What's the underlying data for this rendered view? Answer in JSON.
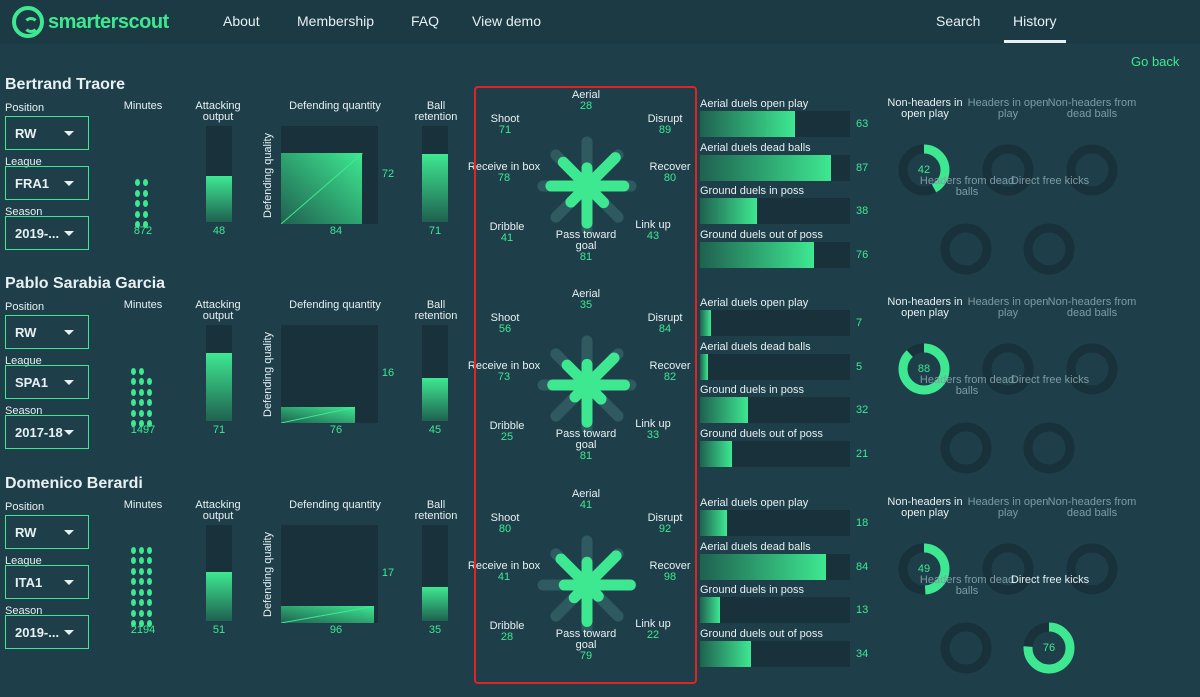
{
  "nav": {
    "logo_text": "smarterscout",
    "links": [
      "About",
      "Membership",
      "FAQ",
      "View demo"
    ],
    "right_links": [
      "Search",
      "History"
    ],
    "go_back": "Go back"
  },
  "labels": {
    "position": "Position",
    "league": "League",
    "season": "Season",
    "minutes": "Minutes",
    "attacking_output": "Attacking output",
    "defending_quantity": "Defending quantity",
    "defending_quality": "Defending quality",
    "ball_retention": "Ball retention",
    "aerial": "Aerial",
    "shoot": "Shoot",
    "disrupt": "Disrupt",
    "receive_in_box": "Receive in box",
    "recover": "Recover",
    "dribble": "Dribble",
    "pass_toward_goal": "Pass toward goal",
    "link_up": "Link up",
    "aerial_duels_open_play": "Aerial duels open play",
    "aerial_duels_dead_balls": "Aerial duels dead balls",
    "ground_duels_in_poss": "Ground duels in poss",
    "ground_duels_out_of_poss": "Ground duels out of poss",
    "non_headers_open_play": "Non-headers in open play",
    "headers_open_play": "Headers in open play",
    "non_headers_dead_balls": "Non-headers from dead balls",
    "headers_dead_balls": "Headers from dead balls",
    "direct_free_kicks": "Direct free kicks"
  },
  "colors": {
    "accent": "#3ee891",
    "background": "#1e3f4a",
    "track": "#18313a",
    "highlight_box": "#e02424"
  },
  "players": [
    {
      "name": "Bertrand Traore",
      "position": "RW",
      "league": "FRA1",
      "season": "2019-...",
      "minutes": 872,
      "attacking_output": 48,
      "defending_quantity": 84,
      "defending_quality": 72,
      "ball_retention": 71,
      "radar": {
        "aerial": 28,
        "shoot": 71,
        "disrupt": 89,
        "receive_in_box": 78,
        "recover": 80,
        "dribble": 41,
        "pass_toward_goal": 81,
        "link_up": 43
      },
      "duels": {
        "aerial_open": 63,
        "aerial_dead": 87,
        "ground_in": 38,
        "ground_out": 76
      },
      "shots": {
        "non_headers_open": 42,
        "headers_open": null,
        "non_headers_dead": null,
        "headers_dead": null,
        "direct_free_kicks": null
      }
    },
    {
      "name": "Pablo Sarabia Garcia",
      "position": "RW",
      "league": "SPA1",
      "season": "2017-18",
      "minutes": 1497,
      "attacking_output": 71,
      "defending_quantity": 76,
      "defending_quality": 16,
      "ball_retention": 45,
      "radar": {
        "aerial": 35,
        "shoot": 56,
        "disrupt": 84,
        "receive_in_box": 73,
        "recover": 82,
        "dribble": 25,
        "pass_toward_goal": 81,
        "link_up": 33
      },
      "duels": {
        "aerial_open": 7,
        "aerial_dead": 5,
        "ground_in": 32,
        "ground_out": 21
      },
      "shots": {
        "non_headers_open": 88,
        "headers_open": null,
        "non_headers_dead": null,
        "headers_dead": null,
        "direct_free_kicks": null
      }
    },
    {
      "name": "Domenico Berardi",
      "position": "RW",
      "league": "ITA1",
      "season": "2019-...",
      "minutes": 2194,
      "attacking_output": 51,
      "defending_quantity": 96,
      "defending_quality": 17,
      "ball_retention": 35,
      "radar": {
        "aerial": 41,
        "shoot": 80,
        "disrupt": 92,
        "receive_in_box": 41,
        "recover": 98,
        "dribble": 28,
        "pass_toward_goal": 79,
        "link_up": 22
      },
      "duels": {
        "aerial_open": 18,
        "aerial_dead": 84,
        "ground_in": 13,
        "ground_out": 34
      },
      "shots": {
        "non_headers_open": 49,
        "headers_open": null,
        "non_headers_dead": null,
        "headers_dead": null,
        "direct_free_kicks": 76
      }
    }
  ]
}
